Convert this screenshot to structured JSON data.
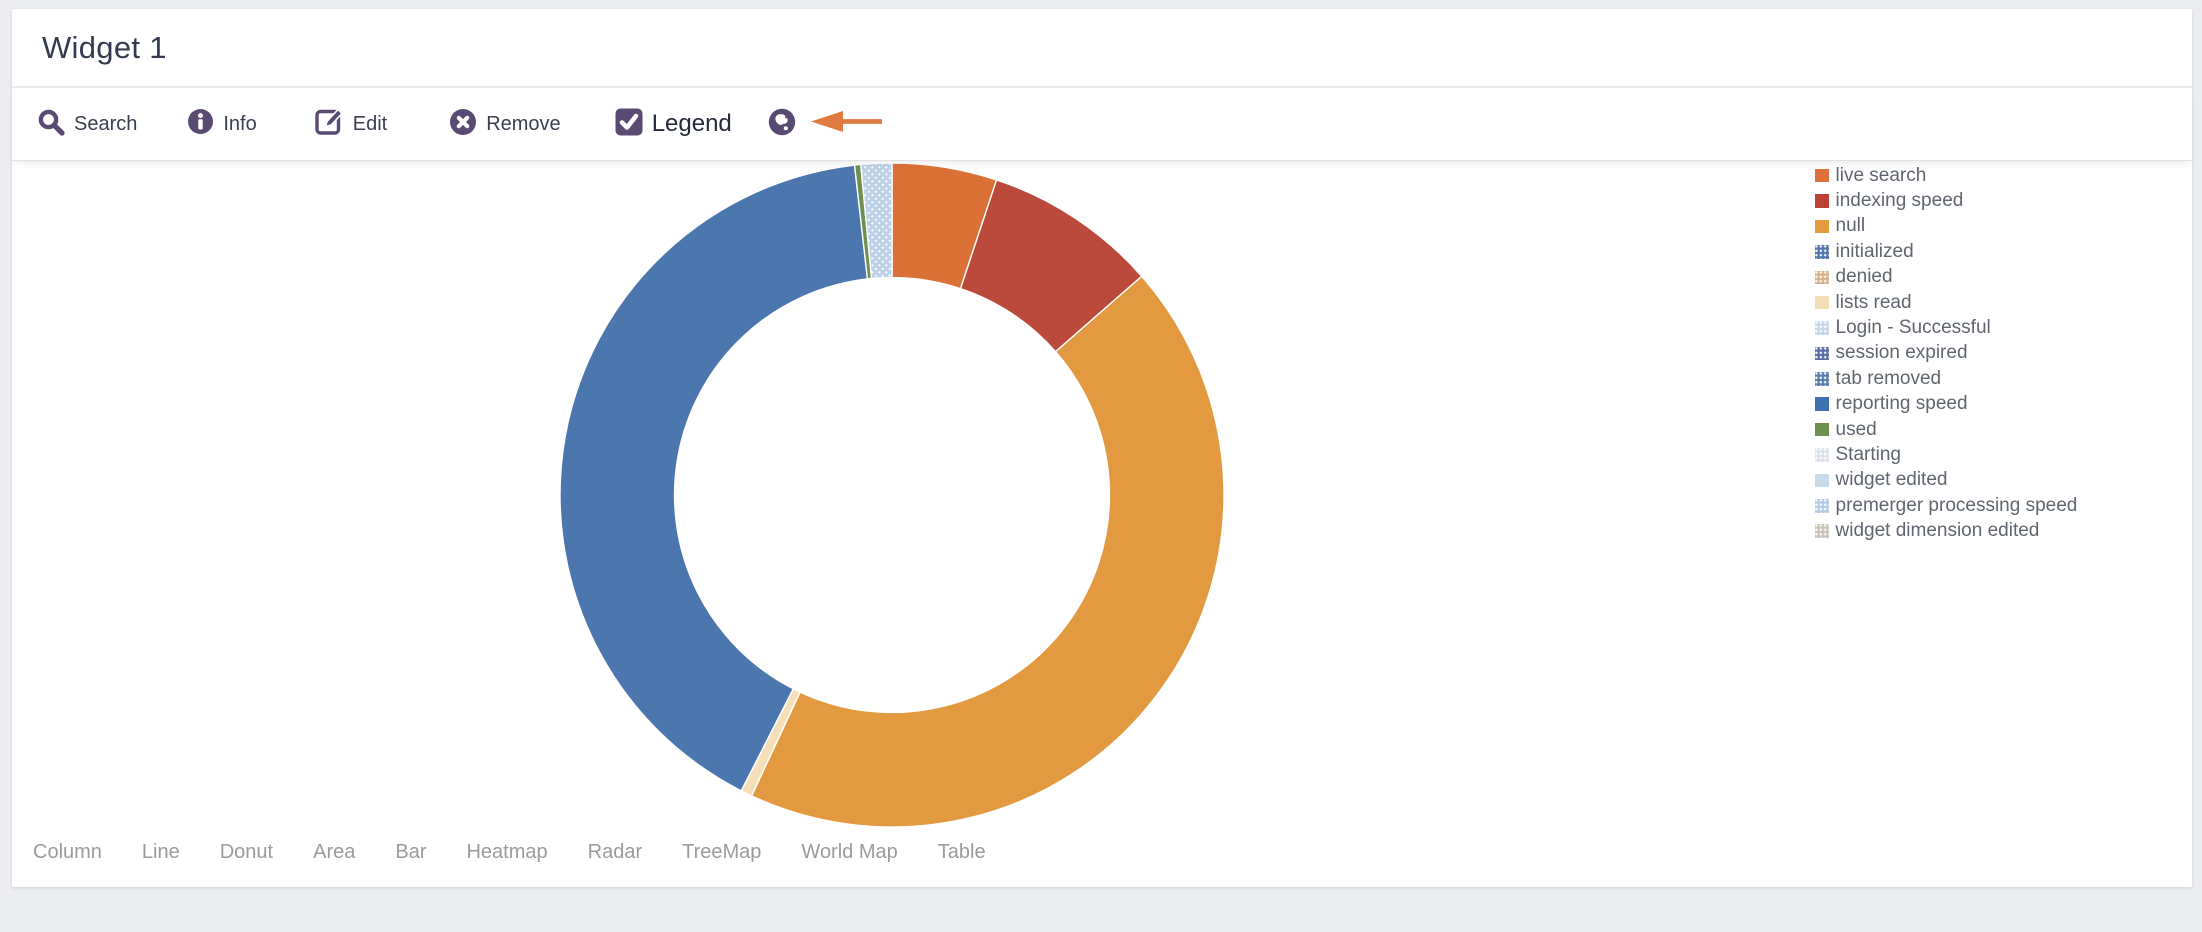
{
  "widget": {
    "title": "Widget 1"
  },
  "toolbar": {
    "search": "Search",
    "info": "Info",
    "edit": "Edit",
    "remove": "Remove",
    "legend": "Legend",
    "legend_checked": true,
    "icon_color": "#584A72",
    "arrow_color": "#DE7B3F"
  },
  "chart_data": {
    "type": "donut",
    "title": "Widget 1",
    "legend_position": "right",
    "start_angle_deg": 0,
    "direction": "clockwise",
    "inner_radius_ratio": 0.655,
    "segments": [
      {
        "name": "live search",
        "percent": 5.1,
        "color": "#DB7137",
        "dotted": false
      },
      {
        "name": "indexing speed",
        "percent": 8.45,
        "color": "#BC4A3C",
        "dotted": false
      },
      {
        "name": "null",
        "percent": 43.4,
        "color": "#E2993F",
        "dotted": false
      },
      {
        "name": "lists read",
        "percent": 0.55,
        "color": "#F5DFB8",
        "dotted": false
      },
      {
        "name": "initialized",
        "percent": 40.7,
        "color": "#4C77AE",
        "dotted": false
      },
      {
        "name": "used",
        "percent": 0.3,
        "color": "#6F9150",
        "dotted": false
      },
      {
        "name": "Login - Successful",
        "percent": 1.5,
        "color": "#BDD2E8",
        "dotted": true
      }
    ],
    "legend": [
      {
        "label": "live search",
        "color": "#E0703A",
        "dotted": false
      },
      {
        "label": "indexing speed",
        "color": "#BE4136",
        "dotted": false
      },
      {
        "label": "null",
        "color": "#E49A3E",
        "dotted": false
      },
      {
        "label": "initialized",
        "color": "#5377AE",
        "dotted": true
      },
      {
        "label": "denied",
        "color": "#D9B28A",
        "dotted": true
      },
      {
        "label": "lists read",
        "color": "#F3DDB5",
        "dotted": false
      },
      {
        "label": "Login - Successful",
        "color": "#C6D6E9",
        "dotted": true
      },
      {
        "label": "session expired",
        "color": "#5C6EA6",
        "dotted": true
      },
      {
        "label": "tab removed",
        "color": "#5B7EAE",
        "dotted": true
      },
      {
        "label": "reporting speed",
        "color": "#3D72AE",
        "dotted": false
      },
      {
        "label": "used",
        "color": "#6F9150",
        "dotted": false
      },
      {
        "label": "Starting",
        "color": "#DEE3EA",
        "dotted": true
      },
      {
        "label": "widget edited",
        "color": "#C9DAEB",
        "dotted": false
      },
      {
        "label": "premerger processing speed",
        "color": "#B3CBE5",
        "dotted": true
      },
      {
        "label": "widget dimension edited",
        "color": "#C9C5B9",
        "dotted": true
      }
    ]
  },
  "tabs": [
    "Column",
    "Line",
    "Donut",
    "Area",
    "Bar",
    "Heatmap",
    "Radar",
    "TreeMap",
    "World Map",
    "Table"
  ]
}
